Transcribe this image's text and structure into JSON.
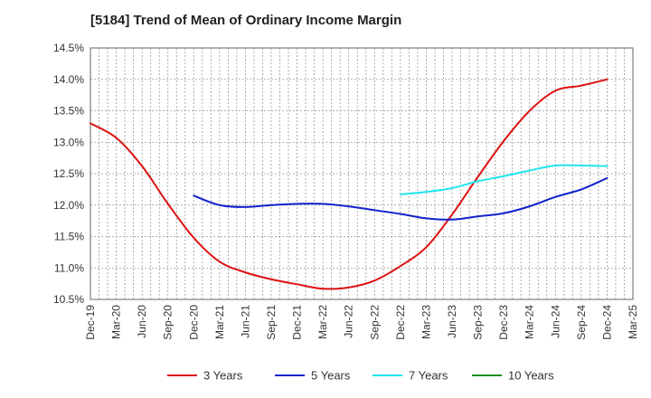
{
  "chart_data": {
    "type": "line",
    "title": "[5184]  Trend of Mean of Ordinary Income Margin",
    "xlabel": "",
    "ylabel": "",
    "categories": [
      "Dec-19",
      "Mar-20",
      "Jun-20",
      "Sep-20",
      "Dec-20",
      "Mar-21",
      "Jun-21",
      "Sep-21",
      "Dec-21",
      "Mar-22",
      "Jun-22",
      "Sep-22",
      "Dec-22",
      "Mar-23",
      "Jun-23",
      "Sep-23",
      "Dec-23",
      "Mar-24",
      "Jun-24",
      "Sep-24",
      "Dec-24",
      "Mar-25"
    ],
    "y_ticks": [
      "10.5%",
      "11.0%",
      "11.5%",
      "12.0%",
      "12.5%",
      "13.0%",
      "13.5%",
      "14.0%",
      "14.5%"
    ],
    "ylim": [
      10.5,
      14.5
    ],
    "grid": true,
    "legend_position": "bottom",
    "series": [
      {
        "name": "3 Years",
        "color": "#dd1111",
        "values": [
          13.3,
          13.07,
          12.62,
          12.02,
          11.48,
          11.1,
          10.93,
          10.82,
          10.74,
          10.67,
          10.69,
          10.8,
          11.03,
          11.33,
          11.85,
          12.45,
          13.02,
          13.5,
          13.82,
          13.9,
          14.0,
          null
        ]
      },
      {
        "name": "5 Years",
        "color": "#1122cc",
        "values": [
          null,
          null,
          null,
          null,
          12.15,
          12.0,
          11.97,
          12.0,
          12.02,
          12.02,
          11.98,
          11.92,
          11.86,
          11.79,
          11.77,
          11.82,
          11.87,
          11.98,
          12.13,
          12.25,
          12.43,
          null
        ]
      },
      {
        "name": "7 Years",
        "color": "#22e5ee",
        "values": [
          null,
          null,
          null,
          null,
          null,
          null,
          null,
          null,
          null,
          null,
          null,
          null,
          12.17,
          12.21,
          12.27,
          12.38,
          12.46,
          12.55,
          12.63,
          12.63,
          12.62,
          null
        ]
      },
      {
        "name": "10 Years",
        "color": "#228b22",
        "values": [
          null,
          null,
          null,
          null,
          null,
          null,
          null,
          null,
          null,
          null,
          null,
          null,
          null,
          null,
          null,
          null,
          null,
          null,
          null,
          null,
          null,
          null
        ]
      }
    ]
  }
}
